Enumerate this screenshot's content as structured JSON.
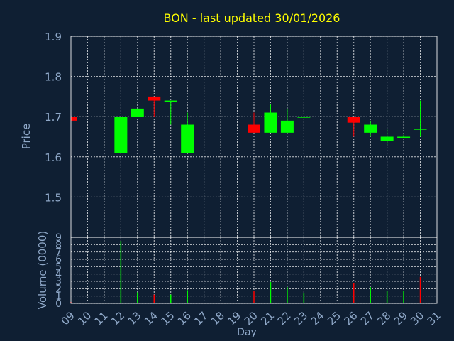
{
  "colors": {
    "background": "#0f1f33",
    "title": "#ffff00",
    "axis_text": "#8fa8c8",
    "axis_title": "#8fa8c8",
    "grid": "#ffffff",
    "frame": "#ffffff",
    "up": "#00ff00",
    "down": "#ff0000"
  },
  "chart_data": [
    {
      "type": "candlestick",
      "title": "BON - last updated 30/01/2026",
      "ylabel": "Price",
      "ylim": [
        1.4,
        1.9
      ],
      "yticks": [
        "1.9",
        "1.8",
        "1.7",
        "1.6",
        "1.5"
      ],
      "grid": true,
      "legend": "none",
      "categories": [
        "09",
        "10",
        "11",
        "12",
        "13",
        "14",
        "15",
        "16",
        "17",
        "18",
        "19",
        "20",
        "21",
        "22",
        "23",
        "24",
        "25",
        "26",
        "27",
        "28",
        "29",
        "30",
        "31"
      ],
      "candles": [
        {
          "day": "09",
          "open": 1.7,
          "high": 1.7,
          "low": 1.69,
          "close": 1.69
        },
        {
          "day": "12",
          "open": 1.61,
          "high": 1.7,
          "low": 1.61,
          "close": 1.7
        },
        {
          "day": "13",
          "open": 1.7,
          "high": 1.72,
          "low": 1.7,
          "close": 1.72
        },
        {
          "day": "14",
          "open": 1.75,
          "high": 1.75,
          "low": 1.7,
          "close": 1.74
        },
        {
          "day": "15",
          "open": 1.74,
          "high": 1.74,
          "low": 1.68,
          "close": 1.74
        },
        {
          "day": "16",
          "open": 1.61,
          "high": 1.71,
          "low": 1.61,
          "close": 1.68
        },
        {
          "day": "20",
          "open": 1.68,
          "high": 1.71,
          "low": 1.66,
          "close": 1.66
        },
        {
          "day": "21",
          "open": 1.66,
          "high": 1.73,
          "low": 1.66,
          "close": 1.71
        },
        {
          "day": "22",
          "open": 1.66,
          "high": 1.72,
          "low": 1.66,
          "close": 1.69
        },
        {
          "day": "23",
          "open": 1.7,
          "high": 1.7,
          "low": 1.7,
          "close": 1.7
        },
        {
          "day": "26",
          "open": 1.7,
          "high": 1.7,
          "low": 1.65,
          "close": 1.685
        },
        {
          "day": "27",
          "open": 1.66,
          "high": 1.69,
          "low": 1.65,
          "close": 1.68
        },
        {
          "day": "28",
          "open": 1.64,
          "high": 1.67,
          "low": 1.63,
          "close": 1.65
        },
        {
          "day": "29",
          "open": 1.65,
          "high": 1.655,
          "low": 1.65,
          "close": 1.65
        },
        {
          "day": "30",
          "open": 1.67,
          "high": 1.74,
          "low": 1.65,
          "close": 1.67
        }
      ]
    },
    {
      "type": "bar",
      "ylabel": "Volume (0000)",
      "xlabel": "Day",
      "ylim": [
        0,
        9
      ],
      "yticks": [
        "0",
        "1",
        "2",
        "3",
        "4",
        "5",
        "6",
        "7",
        "8",
        "9"
      ],
      "grid": true,
      "categories": [
        "09",
        "10",
        "11",
        "12",
        "13",
        "14",
        "15",
        "16",
        "17",
        "18",
        "19",
        "20",
        "21",
        "22",
        "23",
        "24",
        "25",
        "26",
        "27",
        "28",
        "29",
        "30",
        "31"
      ],
      "volumes": [
        {
          "day": "09",
          "value": 0.2,
          "direction": "down"
        },
        {
          "day": "12",
          "value": 8.5,
          "direction": "up"
        },
        {
          "day": "13",
          "value": 1.5,
          "direction": "up"
        },
        {
          "day": "14",
          "value": 1.2,
          "direction": "down"
        },
        {
          "day": "15",
          "value": 1.2,
          "direction": "up"
        },
        {
          "day": "16",
          "value": 1.8,
          "direction": "up"
        },
        {
          "day": "20",
          "value": 1.7,
          "direction": "down"
        },
        {
          "day": "21",
          "value": 2.9,
          "direction": "up"
        },
        {
          "day": "22",
          "value": 2.2,
          "direction": "up"
        },
        {
          "day": "23",
          "value": 1.4,
          "direction": "up"
        },
        {
          "day": "26",
          "value": 2.8,
          "direction": "down"
        },
        {
          "day": "27",
          "value": 2.2,
          "direction": "up"
        },
        {
          "day": "28",
          "value": 1.7,
          "direction": "up"
        },
        {
          "day": "29",
          "value": 1.7,
          "direction": "up"
        },
        {
          "day": "30",
          "value": 3.6,
          "direction": "down"
        }
      ]
    }
  ]
}
